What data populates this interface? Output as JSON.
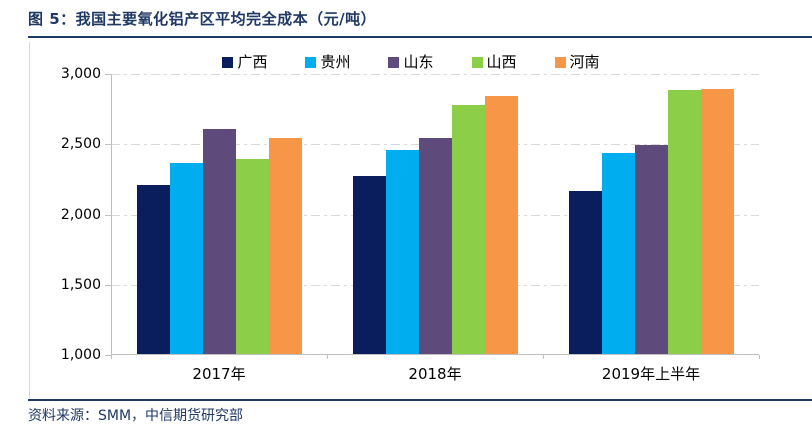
{
  "header": {
    "title": "图 5：我国主要氧化铝产区平均完全成本（元/吨）"
  },
  "footer": {
    "source": "资料来源：SMM，中信期货研究部"
  },
  "colors": {
    "accent_rule": "#1f3864",
    "title_text": "#1f3864",
    "axis": "#bfbfbf",
    "gridline": "#d9d9d9",
    "label_text": "#000000"
  },
  "chart_data": {
    "type": "bar",
    "title": "我国主要氧化铝产区平均完全成本（元/吨）",
    "categories": [
      "2017年",
      "2018年",
      "2019年上半年"
    ],
    "series": [
      {
        "name": "广西",
        "color": "#0a1e5e",
        "values": [
          2200,
          2270,
          2160
        ]
      },
      {
        "name": "贵州",
        "color": "#00aeef",
        "values": [
          2360,
          2450,
          2430
        ]
      },
      {
        "name": "山东",
        "color": "#5f4a7c",
        "values": [
          2600,
          2540,
          2490
        ]
      },
      {
        "name": "山西",
        "color": "#8dce49",
        "values": [
          2390,
          2770,
          2880
        ]
      },
      {
        "name": "河南",
        "color": "#f79646",
        "values": [
          2540,
          2840,
          2890
        ]
      }
    ],
    "ylim": [
      1000,
      3000
    ],
    "ytick_step": 500,
    "ytick_labels": [
      "1,000",
      "1,500",
      "2,000",
      "2,500",
      "3,000"
    ],
    "grid": "horizontal-dashed",
    "legend_position": "top-center"
  }
}
